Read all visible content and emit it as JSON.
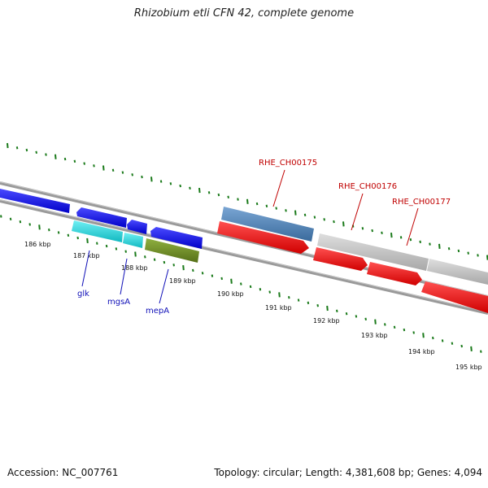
{
  "title": "Rhizobium etli CFN 42, complete genome",
  "accession": "Accession: NC_007761",
  "summary": "Topology: circular; Length: 4,381,608 bp; Genes: 4,094",
  "colors": {
    "backbone": "#8a8a8a",
    "tick": "#1a7a1a",
    "blue_gene": "#0a0ae8",
    "cyan_gene": "#20d0d8",
    "olive_gene": "#6b8e23",
    "steelblue_gene": "#4a7eb4",
    "red_gene": "#f01010",
    "grey_gene": "#c0c0c0",
    "blue_label": "#1010b8",
    "red_label": "#c00000"
  },
  "kbp_labels": [
    "186 kbp",
    "187 kbp",
    "188 kbp",
    "189 kbp",
    "190 kbp",
    "191 kbp",
    "192 kbp",
    "193 kbp",
    "194 kbp",
    "195 kbp"
  ],
  "gene_labels": {
    "glk": "glk",
    "mgsA": "mgsA",
    "mepA": "mepA",
    "rhe175": "RHE_CH00175",
    "rhe176": "RHE_CH00176",
    "rhe177": "RHE_CH00177"
  }
}
